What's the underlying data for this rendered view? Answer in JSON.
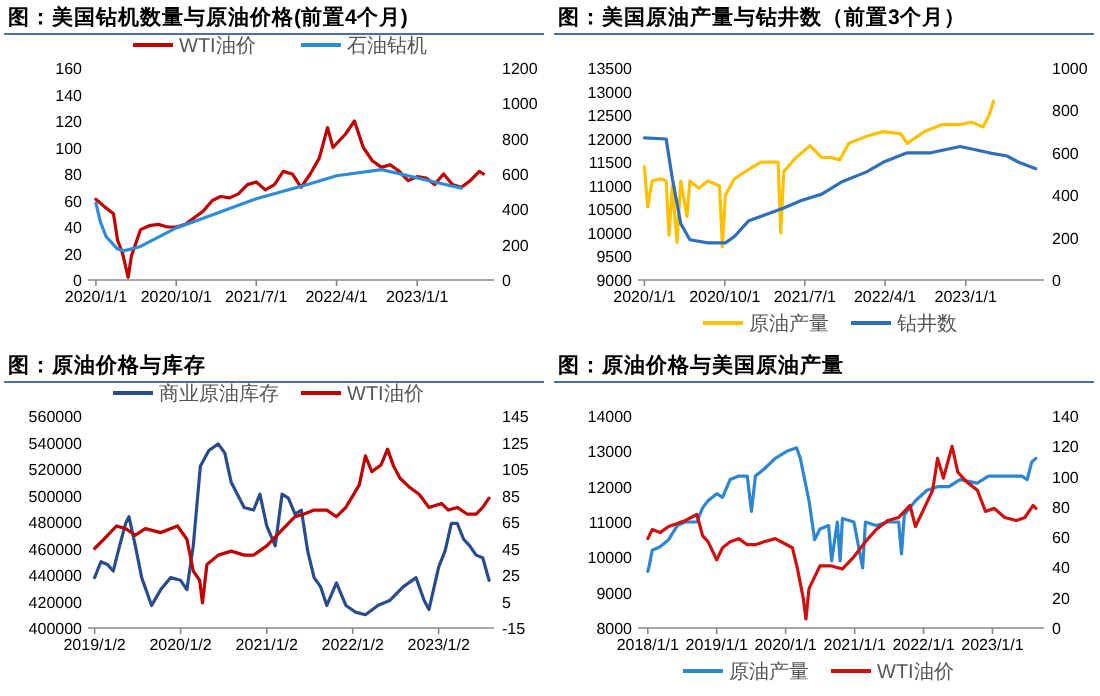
{
  "chart_data": [
    {
      "type": "line",
      "title": "图：美国钻机数量与原油价格(前置4个月)",
      "legend": "top",
      "grid": false,
      "xlim": [
        "2019-12-05",
        "2023-09-20"
      ],
      "xticks": [
        {
          "value": "2020-01-01",
          "label": "2020/1/1"
        },
        {
          "value": "2020-10-01",
          "label": "2020/10/1"
        },
        {
          "value": "2021-07-01",
          "label": "2021/7/1"
        },
        {
          "value": "2022-04-01",
          "label": "2022/4/1"
        },
        {
          "value": "2023-01-01",
          "label": "2023/1/1"
        }
      ],
      "ylim": [
        0,
        160
      ],
      "yticks": [
        0,
        20,
        40,
        60,
        80,
        100,
        120,
        140,
        160
      ],
      "y2lim": [
        0,
        1200
      ],
      "y2ticks": [
        0,
        200,
        400,
        600,
        800,
        1000,
        1200
      ],
      "series": [
        {
          "name": "WTI油价",
          "color": "#c00000",
          "x": [
            "2020-01-01",
            "2020-02-01",
            "2020-03-01",
            "2020-03-15",
            "2020-04-01",
            "2020-04-20",
            "2020-05-01",
            "2020-06-01",
            "2020-07-01",
            "2020-08-01",
            "2020-09-01",
            "2020-10-01",
            "2020-11-01",
            "2020-12-01",
            "2021-01-01",
            "2021-02-01",
            "2021-03-01",
            "2021-04-01",
            "2021-05-01",
            "2021-06-01",
            "2021-07-01",
            "2021-08-01",
            "2021-09-01",
            "2021-10-01",
            "2021-11-01",
            "2021-12-01",
            "2022-01-01",
            "2022-02-01",
            "2022-03-01",
            "2022-03-20",
            "2022-04-01",
            "2022-05-01",
            "2022-06-01",
            "2022-07-01",
            "2022-08-01",
            "2022-09-01",
            "2022-10-01",
            "2022-11-01",
            "2022-12-01",
            "2023-01-01",
            "2023-02-01",
            "2023-03-01",
            "2023-04-01",
            "2023-05-01",
            "2023-06-01",
            "2023-07-01",
            "2023-08-01",
            "2023-08-15"
          ],
          "values": [
            61,
            55,
            50,
            30,
            20,
            2,
            18,
            38,
            41,
            42,
            40,
            40,
            42,
            47,
            52,
            60,
            63,
            62,
            65,
            72,
            74,
            68,
            72,
            82,
            80,
            70,
            80,
            92,
            115,
            100,
            103,
            110,
            120,
            100,
            90,
            85,
            87,
            82,
            75,
            78,
            77,
            72,
            80,
            72,
            70,
            75,
            82,
            80
          ]
        },
        {
          "name": "石油钻机",
          "color": "#2e8bd6",
          "axis": "y2",
          "x": [
            "2020-01-01",
            "2020-01-16",
            "2020-02-05",
            "2020-03-15",
            "2020-04-05",
            "2020-06-01",
            "2020-10-01",
            "2021-01-01",
            "2021-07-01",
            "2022-01-01",
            "2022-04-01",
            "2022-09-01",
            "2022-12-01",
            "2023-03-01",
            "2023-06-01"
          ],
          "values": [
            435,
            330,
            245,
            175,
            165,
            190,
            295,
            350,
            460,
            545,
            590,
            625,
            590,
            555,
            520
          ]
        }
      ]
    },
    {
      "type": "line",
      "title": "图：美国原油产量与钻井数（前置3个月）",
      "legend": "bottom",
      "grid": false,
      "xlim": [
        "2019-12-10",
        "2023-09-25"
      ],
      "xticks": [
        {
          "value": "2020-01-01",
          "label": "2020/1/1"
        },
        {
          "value": "2020-10-01",
          "label": "2020/10/1"
        },
        {
          "value": "2021-07-01",
          "label": "2021/7/1"
        },
        {
          "value": "2022-04-01",
          "label": "2022/4/1"
        },
        {
          "value": "2023-01-01",
          "label": "2023/1/1"
        }
      ],
      "ylim": [
        9000,
        13500
      ],
      "yticks": [
        9000,
        9500,
        10000,
        10500,
        11000,
        11500,
        12000,
        12500,
        13000,
        13500
      ],
      "y2lim": [
        0,
        1000
      ],
      "y2ticks": [
        0,
        200,
        400,
        600,
        800,
        1000
      ],
      "series": [
        {
          "name": "原油产量",
          "color": "#ffc000",
          "x": [
            "2020-01-01",
            "2020-01-12",
            "2020-01-27",
            "2020-02-25",
            "2020-03-15",
            "2020-03-25",
            "2020-04-05",
            "2020-04-21",
            "2020-05-04",
            "2020-05-25",
            "2020-06-04",
            "2020-07-04",
            "2020-08-04",
            "2020-09-13",
            "2020-09-23",
            "2020-10-03",
            "2020-11-03",
            "2020-12-22",
            "2021-02-01",
            "2021-04-01",
            "2021-04-10",
            "2021-04-20",
            "2021-06-01",
            "2021-07-19",
            "2021-08-28",
            "2021-09-28",
            "2021-10-28",
            "2021-11-28",
            "2022-01-28",
            "2022-03-25",
            "2022-05-25",
            "2022-06-15",
            "2022-08-13",
            "2022-10-13",
            "2022-12-13",
            "2023-01-22",
            "2023-03-01",
            "2023-03-22",
            "2023-04-06"
          ],
          "values": [
            11400,
            10550,
            11100,
            11150,
            11100,
            9950,
            11000,
            9800,
            11100,
            10350,
            11100,
            10950,
            11100,
            11000,
            9700,
            10800,
            11150,
            11350,
            11500,
            11500,
            10000,
            11300,
            11600,
            11850,
            11600,
            11600,
            11550,
            11900,
            12050,
            12150,
            12100,
            11900,
            12150,
            12300,
            12300,
            12350,
            12250,
            12500,
            12800
          ]
        },
        {
          "name": "钻井数",
          "color": "#2f6eba",
          "axis": "y2",
          "x": [
            "2020-01-01",
            "2020-03-15",
            "2020-04-05",
            "2020-05-04",
            "2020-06-04",
            "2020-08-04",
            "2020-10-03",
            "2020-11-03",
            "2020-12-22",
            "2021-02-21",
            "2021-04-20",
            "2021-06-19",
            "2021-08-28",
            "2021-11-07",
            "2022-01-28",
            "2022-03-25",
            "2022-06-15",
            "2022-09-04",
            "2022-12-13",
            "2023-03-22",
            "2023-05-22",
            "2023-07-01",
            "2023-08-28"
          ],
          "values": [
            670,
            665,
            480,
            265,
            190,
            175,
            175,
            205,
            280,
            310,
            340,
            375,
            405,
            465,
            510,
            555,
            600,
            600,
            630,
            600,
            585,
            555,
            525
          ]
        }
      ]
    },
    {
      "type": "line",
      "title": "图：原油价格与库存",
      "legend": "top",
      "grid": false,
      "xlim": [
        "2018-12-05",
        "2023-08-25"
      ],
      "xticks": [
        {
          "value": "2019-01-02",
          "label": "2019/1/2"
        },
        {
          "value": "2020-01-02",
          "label": "2020/1/2"
        },
        {
          "value": "2021-01-02",
          "label": "2021/1/2"
        },
        {
          "value": "2022-01-02",
          "label": "2022/1/2"
        },
        {
          "value": "2023-01-02",
          "label": "2023/1/2"
        }
      ],
      "ylim": [
        400000,
        560000
      ],
      "yticks": [
        400000,
        420000,
        440000,
        460000,
        480000,
        500000,
        520000,
        540000,
        560000
      ],
      "y2lim": [
        -15,
        145
      ],
      "y2ticks": [
        -15,
        5,
        25,
        45,
        65,
        85,
        105,
        125,
        145
      ],
      "series": [
        {
          "name": "商业原油库存",
          "color": "#2b4c8c",
          "x": [
            "2019-01-02",
            "2019-01-29",
            "2019-02-25",
            "2019-03-22",
            "2019-04-18",
            "2019-05-14",
            "2019-05-28",
            "2019-06-24",
            "2019-07-21",
            "2019-09-01",
            "2019-10-10",
            "2019-11-21",
            "2020-01-02",
            "2020-01-29",
            "2020-02-25",
            "2020-03-26",
            "2020-05-01",
            "2020-06-10",
            "2020-07-08",
            "2020-08-04",
            "2020-09-28",
            "2020-11-07",
            "2020-12-04",
            "2021-01-02",
            "2021-02-07",
            "2021-03-08",
            "2021-04-04",
            "2021-05-02",
            "2021-05-29",
            "2021-06-25",
            "2021-07-22",
            "2021-08-19",
            "2021-09-14",
            "2021-10-25",
            "2021-12-04",
            "2022-01-14",
            "2022-02-25",
            "2022-04-19",
            "2022-06-10",
            "2022-08-04",
            "2022-09-28",
            "2022-11-01",
            "2022-11-22",
            "2023-01-02",
            "2023-01-29",
            "2023-02-25",
            "2023-03-22",
            "2023-04-18",
            "2023-05-14",
            "2023-06-10",
            "2023-07-08",
            "2023-08-04"
          ],
          "values": [
            438000,
            450000,
            448000,
            443000,
            462000,
            479000,
            484000,
            462000,
            438000,
            417000,
            429000,
            438000,
            436000,
            429000,
            462000,
            522000,
            534000,
            539000,
            532000,
            510000,
            491000,
            489000,
            501000,
            477000,
            462000,
            501000,
            498000,
            486000,
            489000,
            458000,
            438000,
            431000,
            417000,
            434000,
            417000,
            412000,
            410000,
            417000,
            421000,
            431000,
            438000,
            421000,
            414000,
            446000,
            458000,
            479000,
            479000,
            467000,
            462000,
            455000,
            453000,
            436000
          ]
        },
        {
          "name": "WTI油价",
          "color": "#c00000",
          "axis": "y2",
          "x": [
            "2019-01-02",
            "2019-02-11",
            "2019-04-05",
            "2019-05-14",
            "2019-06-24",
            "2019-08-05",
            "2019-10-10",
            "2019-12-20",
            "2020-01-29",
            "2020-02-25",
            "2020-03-23",
            "2020-04-04",
            "2020-04-23",
            "2020-06-10",
            "2020-08-04",
            "2020-09-28",
            "2020-11-07",
            "2021-01-02",
            "2021-03-08",
            "2021-05-02",
            "2021-06-10",
            "2021-07-22",
            "2021-09-14",
            "2021-10-25",
            "2021-12-04",
            "2022-01-30",
            "2022-02-25",
            "2022-03-24",
            "2022-05-02",
            "2022-05-30",
            "2022-06-25",
            "2022-07-22",
            "2022-09-02",
            "2022-10-11",
            "2022-11-22",
            "2023-01-14",
            "2023-02-12",
            "2023-03-22",
            "2023-05-02",
            "2023-06-10",
            "2023-07-08",
            "2023-08-04"
          ],
          "values": [
            45,
            52,
            62,
            60,
            55,
            60,
            57,
            62,
            52,
            28,
            21,
            4,
            33,
            40,
            43,
            40,
            40,
            47,
            59,
            69,
            71,
            74,
            74,
            69,
            76,
            93,
            115,
            103,
            108,
            120,
            107,
            98,
            91,
            86,
            76,
            79,
            74,
            76,
            71,
            71,
            76,
            83
          ]
        }
      ]
    },
    {
      "type": "line",
      "title": "图：原油价格与美国原油产量",
      "legend": "bottom",
      "grid": false,
      "xlim": [
        "2017-11-10",
        "2023-10-01"
      ],
      "xticks": [
        {
          "value": "2018-01-01",
          "label": "2018/1/1"
        },
        {
          "value": "2019-01-01",
          "label": "2019/1/1"
        },
        {
          "value": "2020-01-01",
          "label": "2020/1/1"
        },
        {
          "value": "2021-01-01",
          "label": "2021/1/1"
        },
        {
          "value": "2022-01-01",
          "label": "2022/1/1"
        },
        {
          "value": "2023-01-01",
          "label": "2023/1/1"
        }
      ],
      "ylim": [
        8000,
        14000
      ],
      "yticks": [
        8000,
        9000,
        10000,
        11000,
        12000,
        13000,
        14000
      ],
      "y2lim": [
        0,
        140
      ],
      "y2ticks": [
        0,
        20,
        40,
        60,
        80,
        100,
        120,
        140
      ],
      "series": [
        {
          "name": "原油产量",
          "color": "#2e86d1",
          "x": [
            "2018-01-01",
            "2018-01-10",
            "2018-01-24",
            "2018-03-07",
            "2018-04-21",
            "2018-06-06",
            "2018-07-19",
            "2018-09-18",
            "2018-10-18",
            "2018-11-16",
            "2019-01-01",
            "2019-02-01",
            "2019-03-13",
            "2019-04-28",
            "2019-06-12",
            "2019-07-04",
            "2019-07-25",
            "2019-09-09",
            "2019-11-07",
            "2020-01-07",
            "2020-02-28",
            "2020-03-19",
            "2020-05-04",
            "2020-06-03",
            "2020-07-01",
            "2020-08-16",
            "2020-09-01",
            "2020-10-01",
            "2020-10-16",
            "2020-10-28",
            "2020-12-28",
            "2021-02-12",
            "2021-02-27",
            "2021-04-25",
            "2021-06-25",
            "2021-08-22",
            "2021-09-06",
            "2021-09-21",
            "2021-11-19",
            "2022-01-19",
            "2022-03-16",
            "2022-05-16",
            "2022-07-13",
            "2022-10-13",
            "2022-12-10",
            "2023-02-09",
            "2023-04-07",
            "2023-06-06",
            "2023-07-04",
            "2023-07-28",
            "2023-08-19"
          ],
          "values": [
            9600,
            9800,
            10200,
            10300,
            10500,
            10900,
            11000,
            11000,
            11400,
            11600,
            11800,
            11700,
            12200,
            12300,
            12300,
            11300,
            12300,
            12500,
            12800,
            13000,
            13100,
            12800,
            11600,
            10500,
            10800,
            10900,
            9900,
            11000,
            9900,
            11100,
            11000,
            9700,
            11000,
            10900,
            11000,
            11000,
            10100,
            11200,
            11600,
            11900,
            12000,
            12000,
            12200,
            12100,
            12300,
            12300,
            12300,
            12300,
            12200,
            12700,
            12800
          ]
        },
        {
          "name": "WTI油价",
          "color": "#d01010",
          "axis": "y2",
          "x": [
            "2018-01-01",
            "2018-01-24",
            "2018-03-07",
            "2018-04-21",
            "2018-06-06",
            "2018-07-19",
            "2018-09-18",
            "2018-10-18",
            "2018-11-16",
            "2019-01-01",
            "2019-02-01",
            "2019-03-13",
            "2019-04-28",
            "2019-06-12",
            "2019-07-25",
            "2019-09-09",
            "2019-11-07",
            "2020-01-07",
            "2020-02-06",
            "2020-03-04",
            "2020-04-03",
            "2020-04-18",
            "2020-05-04",
            "2020-07-01",
            "2020-09-01",
            "2020-10-28",
            "2020-12-28",
            "2021-02-27",
            "2021-04-25",
            "2021-06-25",
            "2021-08-22",
            "2021-10-21",
            "2021-11-19",
            "2022-01-04",
            "2022-02-18",
            "2022-03-16",
            "2022-04-16",
            "2022-06-01",
            "2022-07-01",
            "2022-08-13",
            "2022-10-13",
            "2022-11-25",
            "2023-01-10",
            "2023-03-07",
            "2023-05-07",
            "2023-06-22",
            "2023-08-04",
            "2023-08-19"
          ],
          "values": [
            59,
            65,
            63,
            67,
            69,
            71,
            75,
            61,
            57,
            45,
            53,
            57,
            59,
            55,
            55,
            57,
            59,
            55,
            53,
            39,
            20,
            6,
            26,
            41,
            41,
            39,
            47,
            57,
            65,
            71,
            73,
            81,
            67,
            79,
            91,
            112,
            99,
            120,
            103,
            97,
            91,
            77,
            79,
            73,
            71,
            73,
            81,
            79
          ]
        }
      ]
    }
  ]
}
